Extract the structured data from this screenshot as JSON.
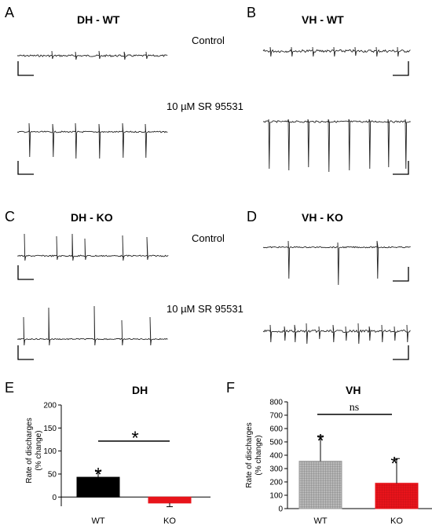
{
  "panels": {
    "A": {
      "letter": "A",
      "title": "DH - WT",
      "top_condition": "Control",
      "bottom_condition": "10 µM SR 95531"
    },
    "B": {
      "letter": "B",
      "title": "VH - WT"
    },
    "C": {
      "letter": "C",
      "title": "DH - KO",
      "top_condition": "Control",
      "bottom_condition": "10 µM SR 95531"
    },
    "D": {
      "letter": "D",
      "title": "VH - KO"
    },
    "E": {
      "letter": "E",
      "title": "DH"
    },
    "F": {
      "letter": "F",
      "title": "VH"
    }
  },
  "chart_data": [
    {
      "panel": "E",
      "type": "bar",
      "title": "DH",
      "categories": [
        "WT",
        "KO"
      ],
      "values": [
        43,
        -13
      ],
      "errors": [
        13,
        8
      ],
      "ylabel": "Rate of discharges (% change)",
      "ylim": [
        -20,
        200
      ],
      "yticks": [
        0,
        50,
        100,
        150,
        200
      ],
      "bar_colors": [
        "#000000",
        "#e8141b"
      ],
      "annotations": {
        "bar_star": "*",
        "comparison_star": "*"
      },
      "grid": false
    },
    {
      "panel": "F",
      "type": "bar",
      "title": "VH",
      "categories": [
        "WT",
        "KO"
      ],
      "values": [
        355,
        190
      ],
      "errors": [
        190,
        185
      ],
      "ylabel": "Rate of discharges (% change)",
      "ylim": [
        0,
        800
      ],
      "yticks": [
        0,
        100,
        200,
        300,
        400,
        500,
        600,
        700,
        800
      ],
      "bar_colors": [
        "#9a9a9a",
        "#e8141b"
      ],
      "annotations": {
        "bar_star": "*",
        "comparison_label": "ns"
      },
      "grid": false
    }
  ]
}
